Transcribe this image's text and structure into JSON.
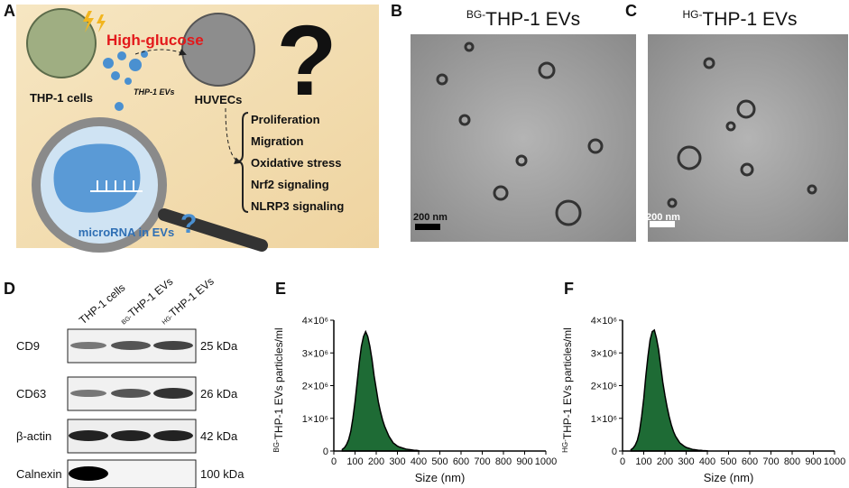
{
  "panel_a": {
    "letter": "A",
    "stimulus": "High-glucose",
    "source_cells": "THP-1 cells",
    "vesicles": "THP-1 EVs",
    "target_cells": "HUVECs",
    "outcomes": [
      "Proliferation",
      "Migration",
      "Oxidative stress",
      "Nrf2 signaling",
      "NLRP3 signaling"
    ],
    "question_mark": "?",
    "cargo": "microRNA in EVs"
  },
  "panel_b": {
    "letter": "B",
    "title_prefix": "BG-",
    "title": "THP-1 EVs",
    "scale_bar": "200 nm"
  },
  "panel_c": {
    "letter": "C",
    "title_prefix": "HG-",
    "title": "THP-1 EVs",
    "scale_bar": "200 nm"
  },
  "panel_d": {
    "letter": "D",
    "lanes": [
      {
        "prefix": "",
        "name": "THP-1 cells"
      },
      {
        "prefix": "BG-",
        "name": "THP-1 EVs"
      },
      {
        "prefix": "HG-",
        "name": "THP-1 EVs"
      }
    ],
    "rows": [
      {
        "protein": "CD9",
        "size": "25 kDa"
      },
      {
        "protein": "CD63",
        "size": "26 kDa"
      },
      {
        "protein": "β-actin",
        "size": "42 kDa"
      },
      {
        "protein": "Calnexin",
        "size": "100 kDa"
      }
    ]
  },
  "chart_data": [
    {
      "type": "area",
      "letter": "E",
      "color": "#1e6b35",
      "x_label": "Size (nm)",
      "y_label_prefix": "BG-",
      "y_label": "THP-1 EVs particles/ml",
      "x": [
        40,
        50,
        60,
        70,
        80,
        90,
        100,
        110,
        120,
        130,
        140,
        150,
        160,
        170,
        180,
        190,
        200,
        210,
        220,
        230,
        240,
        250,
        260,
        270,
        280,
        290,
        300,
        310,
        320,
        330,
        340,
        350,
        360,
        370,
        380,
        390,
        400
      ],
      "values": [
        50000,
        100000,
        200000,
        350000,
        600000,
        1000000,
        1500000,
        2100000,
        2700000,
        3200000,
        3500000,
        3650000,
        3500000,
        3200000,
        2800000,
        2300000,
        1900000,
        1500000,
        1200000,
        950000,
        750000,
        600000,
        450000,
        350000,
        250000,
        200000,
        150000,
        120000,
        100000,
        80000,
        60000,
        50000,
        40000,
        30000,
        20000,
        20000,
        10000
      ],
      "xlim": [
        0,
        1000
      ],
      "xticks": [
        0,
        100,
        200,
        300,
        400,
        500,
        600,
        700,
        800,
        900,
        1000
      ],
      "ylim": [
        0,
        4000000
      ],
      "yticks": [
        0,
        {
          "value": 1000000,
          "label": "1×10⁶"
        },
        {
          "value": 2000000,
          "label": "2×10⁶"
        },
        {
          "value": 3000000,
          "label": "3×10⁶"
        },
        {
          "value": 4000000,
          "label": "4×10⁶"
        }
      ]
    },
    {
      "type": "area",
      "letter": "F",
      "color": "#1e6b35",
      "x_label": "Size (nm)",
      "y_label_prefix": "HG-",
      "y_label": "THP-1 EVs particles/ml",
      "x": [
        40,
        50,
        60,
        70,
        80,
        90,
        100,
        110,
        120,
        130,
        140,
        150,
        160,
        170,
        180,
        190,
        200,
        210,
        220,
        230,
        240,
        250,
        260,
        270,
        280,
        290,
        300,
        310,
        320,
        330,
        340,
        350,
        360,
        370,
        380,
        390,
        400
      ],
      "values": [
        40000,
        90000,
        180000,
        330000,
        600000,
        1050000,
        1600000,
        2300000,
        2900000,
        3400000,
        3650000,
        3700000,
        3450000,
        3100000,
        2600000,
        2100000,
        1700000,
        1350000,
        1050000,
        800000,
        600000,
        450000,
        350000,
        250000,
        200000,
        150000,
        110000,
        90000,
        70000,
        50000,
        40000,
        30000,
        20000,
        20000,
        10000,
        10000,
        5000
      ],
      "xlim": [
        0,
        1000
      ],
      "xticks": [
        0,
        100,
        200,
        300,
        400,
        500,
        600,
        700,
        800,
        900,
        1000
      ],
      "ylim": [
        0,
        4000000
      ],
      "yticks": [
        0,
        {
          "value": 1000000,
          "label": "1×10⁶"
        },
        {
          "value": 2000000,
          "label": "2×10⁶"
        },
        {
          "value": 3000000,
          "label": "3×10⁶"
        },
        {
          "value": 4000000,
          "label": "4×10⁶"
        }
      ]
    }
  ]
}
